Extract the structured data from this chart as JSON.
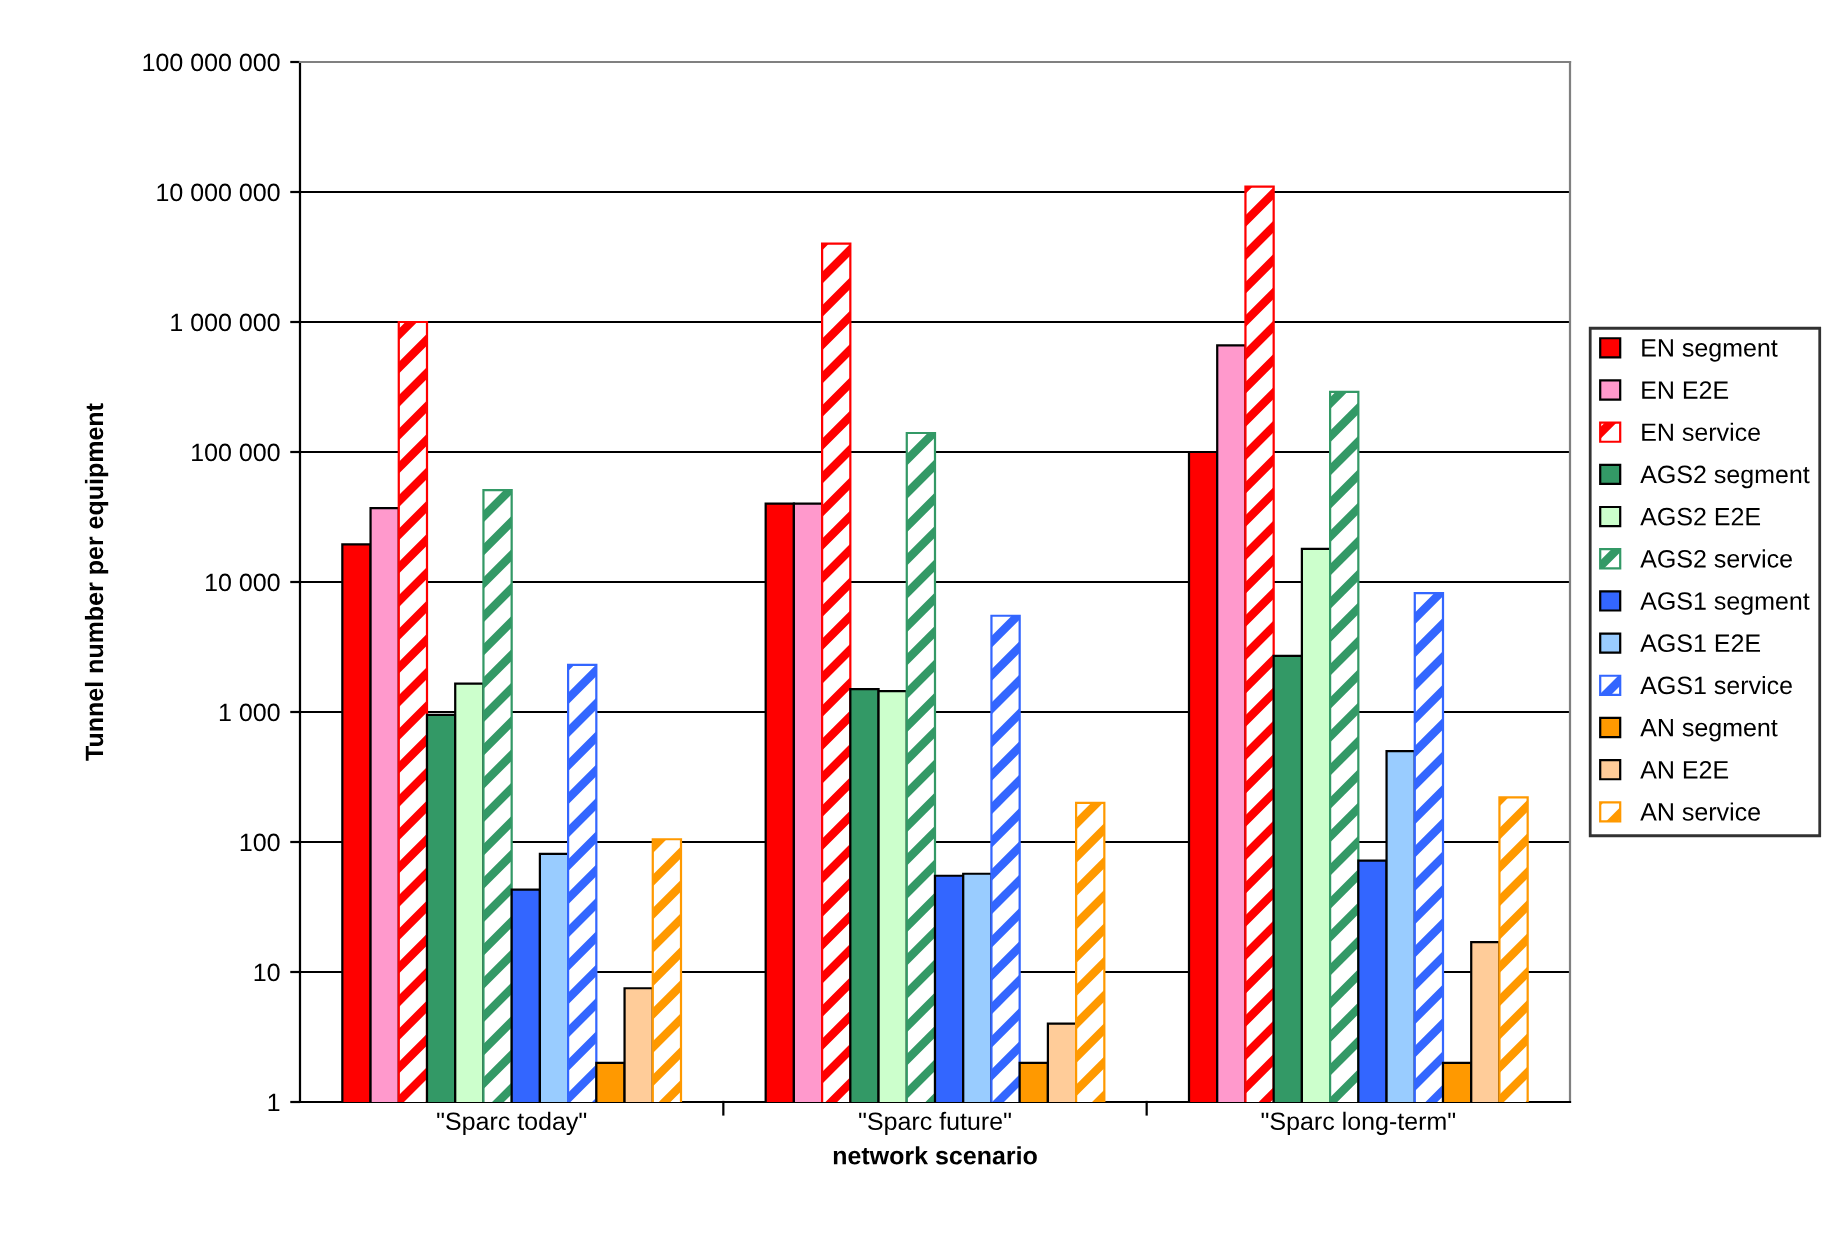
{
  "chart_data": {
    "type": "bar",
    "xlabel": "network scenario",
    "ylabel": "Tunnel number per equipment",
    "categories": [
      "\"Sparc today\"",
      "\"Sparc future\"",
      "\"Sparc long-term\""
    ],
    "log": "y",
    "ylim": [
      1,
      100000000
    ],
    "yticks": [
      {
        "value": 1,
        "label": "1"
      },
      {
        "value": 10,
        "label": "10"
      },
      {
        "value": 100,
        "label": "100"
      },
      {
        "value": 1000,
        "label": "1 000"
      },
      {
        "value": 10000,
        "label": "10 000"
      },
      {
        "value": 100000,
        "label": "100 000"
      },
      {
        "value": 1000000,
        "label": "1 000 000"
      },
      {
        "value": 10000000,
        "label": "10 000 000"
      },
      {
        "value": 100000000,
        "label": "100 000 000"
      }
    ],
    "grid": "y",
    "legend": "right",
    "series": [
      {
        "name": "EN segment",
        "color": "#ff0000",
        "values": [
          19500,
          40000,
          100000
        ]
      },
      {
        "name": "EN E2E",
        "color": "#ff99cc",
        "values": [
          37000,
          40000,
          660000
        ]
      },
      {
        "name": "EN service",
        "color": "#ff0000",
        "values": [
          1000000,
          4000000,
          11000000
        ]
      },
      {
        "name": "AGS2 segment",
        "color": "#339966",
        "values": [
          950,
          1500,
          2700
        ]
      },
      {
        "name": "AGS2 E2E",
        "color": "#ccffcc",
        "values": [
          1650,
          1450,
          18000
        ]
      },
      {
        "name": "AGS2 service",
        "color": "#339966",
        "values": [
          51000,
          140000,
          290000
        ]
      },
      {
        "name": "AGS1 segment",
        "color": "#3366ff",
        "values": [
          43,
          55,
          72
        ]
      },
      {
        "name": "AGS1 E2E",
        "color": "#99ccff",
        "values": [
          81,
          57,
          500
        ]
      },
      {
        "name": "AGS1 service",
        "color": "#3366ff",
        "values": [
          2300,
          5500,
          8200
        ]
      },
      {
        "name": "AN segment",
        "color": "#ff9900",
        "values": [
          2,
          2,
          2
        ]
      },
      {
        "name": "AN E2E",
        "color": "#ffcc99",
        "values": [
          7.5,
          4,
          17
        ]
      },
      {
        "name": "AN service",
        "color": "#ff9900",
        "values": [
          105,
          200,
          220
        ]
      }
    ]
  }
}
